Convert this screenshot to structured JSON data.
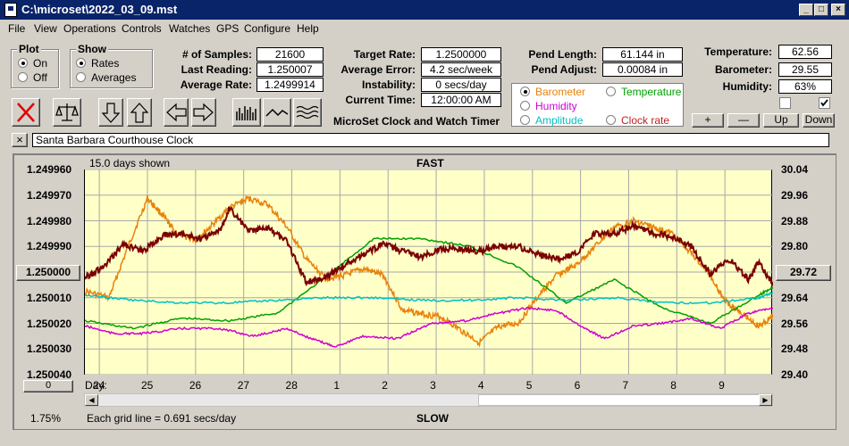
{
  "window": {
    "title": "C:\\microset\\2022_03_09.mst"
  },
  "menu": [
    "File",
    "View",
    "Operations",
    "Controls",
    "Watches",
    "GPS",
    "Configure",
    "Help"
  ],
  "plot_group": {
    "title": "Plot",
    "on": "On",
    "off": "Off",
    "selected": "on"
  },
  "show_group": {
    "title": "Show",
    "rates": "Rates",
    "averages": "Averages",
    "selected": "rates"
  },
  "stats": {
    "samples_label": "# of Samples:",
    "samples": "21600",
    "last_reading_label": "Last Reading:",
    "last_reading": "1.250007",
    "avg_rate_label": "Average Rate:",
    "avg_rate": "1.2499914",
    "target_rate_label": "Target Rate:",
    "target_rate": "1.2500000",
    "avg_error_label": "Average Error:",
    "avg_error": "4.2 sec/week",
    "instability_label": "Instability:",
    "instability": "0 secs/day",
    "current_time_label": "Current Time:",
    "current_time": "12:00:00 AM",
    "pend_length_label": "Pend Length:",
    "pend_length": "61.144 in",
    "pend_adjust_label": "Pend Adjust:",
    "pend_adjust": "0.00084 in",
    "temperature_label": "Temperature:",
    "temperature": "62.56",
    "barometer_label": "Barometer:",
    "barometer": "29.55",
    "humidity_label": "Humidity:",
    "humidity": "63%"
  },
  "app_title": "MicroSet Clock and Watch Timer",
  "channel_legend": {
    "barometer": "Barometer",
    "temperature": "Temperature",
    "humidity": "Humidity",
    "amplitude": "Amplitude",
    "clock_rate": "Clock rate",
    "selected": "barometer",
    "colors": {
      "barometer": "#e8820a",
      "temperature": "#00a000",
      "humidity": "#d000d0",
      "amplitude": "#00c0c0",
      "clock_rate": "#c02020"
    }
  },
  "adjust_buttons": {
    "plus": "+",
    "minus": "—",
    "up": "Up",
    "down": "Down"
  },
  "checkboxes": {
    "left_checked": false,
    "right_checked": true
  },
  "clock_name": {
    "close_icon_label": "×",
    "value": "Santa Barbara Courthouse Clock"
  },
  "chart_header": {
    "days_shown": "15.0 days shown",
    "fast": "FAST",
    "slow": "SLOW"
  },
  "chart_footer": {
    "grid_note": "Each grid line = 0.691 secs/day",
    "percent": "1.75%",
    "day_label": "Day:"
  },
  "left_axis": {
    "center_button": "1.250000",
    "bottom_button": "0"
  },
  "right_axis": {
    "center_button": "29.72"
  },
  "chart_data": {
    "type": "line",
    "x_label": "Day:",
    "x_ticks": [
      "24",
      "25",
      "26",
      "27",
      "28",
      "1",
      "2",
      "3",
      "4",
      "5",
      "6",
      "7",
      "8",
      "9"
    ],
    "x_range": [
      0,
      14.3
    ],
    "y_left": {
      "ticks": [
        "1.249960",
        "1.249970",
        "1.249980",
        "1.249990",
        "1.250000",
        "1.250010",
        "1.250020",
        "1.250030",
        "1.250040"
      ],
      "range": [
        1.24996,
        1.25004
      ],
      "inverted": true
    },
    "y_right": {
      "ticks": [
        "30.04",
        "29.96",
        "29.88",
        "29.80",
        "29.72",
        "29.64",
        "29.56",
        "29.48",
        "29.40"
      ],
      "range": [
        29.4,
        30.04
      ]
    },
    "grid": true,
    "series": [
      {
        "name": "Barometer",
        "color": "#e8820a",
        "axis": "right",
        "x": [
          0,
          0.5,
          0.9,
          1.3,
          1.6,
          1.9,
          2.3,
          2.6,
          3.0,
          3.4,
          3.8,
          4.2,
          4.6,
          5.0,
          5.4,
          5.8,
          6.2,
          6.6,
          7.0,
          7.4,
          7.8,
          8.2,
          8.6,
          9.0,
          9.4,
          9.8,
          10.2,
          10.6,
          11.0,
          11.4,
          11.8,
          12.2,
          12.6,
          13.0,
          13.3,
          13.6,
          14.0,
          14.3
        ],
        "y": [
          29.66,
          29.64,
          29.8,
          29.95,
          29.9,
          29.84,
          29.82,
          29.86,
          29.92,
          29.95,
          29.93,
          29.86,
          29.76,
          29.7,
          29.71,
          29.73,
          29.71,
          29.6,
          29.59,
          29.58,
          29.54,
          29.5,
          29.55,
          29.56,
          29.64,
          29.71,
          29.74,
          29.8,
          29.86,
          29.88,
          29.86,
          29.84,
          29.78,
          29.71,
          29.63,
          29.6,
          29.55,
          29.58
        ]
      },
      {
        "name": "Temperature",
        "color": "#00a000",
        "axis": "left",
        "x": [
          0,
          1,
          2,
          3,
          4,
          5,
          6,
          7,
          8,
          9,
          10,
          11,
          12,
          13,
          14,
          14.3
        ],
        "y": [
          1.250019,
          1.250022,
          1.250018,
          1.250019,
          1.250016,
          1.250002,
          1.249987,
          1.249987,
          1.24999,
          1.249998,
          1.250012,
          1.250003,
          1.250014,
          1.25002,
          1.250009,
          1.250006
        ]
      },
      {
        "name": "Amplitude",
        "color": "#00c0c0",
        "axis": "left",
        "x": [
          0,
          1,
          2,
          3,
          4,
          5,
          6,
          7,
          8,
          9,
          10,
          11,
          12,
          13,
          14,
          14.3
        ],
        "y": [
          1.250009,
          1.250011,
          1.250012,
          1.250012,
          1.250011,
          1.25001,
          1.25001,
          1.250011,
          1.250011,
          1.25001,
          1.250011,
          1.25001,
          1.250012,
          1.250012,
          1.25001,
          1.250008
        ]
      },
      {
        "name": "Humidity",
        "color": "#d000d0",
        "axis": "left",
        "x": [
          0,
          0.6,
          1.2,
          2.0,
          2.8,
          3.5,
          4.2,
          4.7,
          5.2,
          5.8,
          6.5,
          7.2,
          7.9,
          8.6,
          9.2,
          9.8,
          10.4,
          10.8,
          11.4,
          12.0,
          12.6,
          13.2,
          13.8,
          14.3
        ],
        "y": [
          1.250021,
          1.250024,
          1.250024,
          1.250022,
          1.250022,
          1.250025,
          1.250022,
          1.250026,
          1.250029,
          1.250025,
          1.250026,
          1.25002,
          1.250019,
          1.250016,
          1.250014,
          1.250015,
          1.250022,
          1.250026,
          1.250021,
          1.25002,
          1.250018,
          1.250022,
          1.250016,
          1.250014
        ]
      },
      {
        "name": "Clock rate",
        "color": "#7a0000",
        "axis": "left",
        "x": [
          0,
          0.4,
          0.8,
          1.2,
          1.6,
          2.0,
          2.4,
          2.8,
          3.0,
          3.4,
          3.8,
          4.2,
          4.6,
          5.0,
          5.4,
          5.8,
          6.2,
          6.6,
          7.0,
          7.4,
          7.8,
          8.2,
          8.6,
          9.0,
          9.4,
          9.8,
          10.2,
          10.6,
          11.0,
          11.4,
          11.8,
          12.2,
          12.6,
          13.0,
          13.4,
          13.8,
          14.0,
          14.3
        ],
        "y": [
          1.250002,
          1.249998,
          1.249989,
          1.249992,
          1.249986,
          1.249985,
          1.249987,
          1.249984,
          1.249975,
          1.249984,
          1.249983,
          1.249988,
          1.250004,
          1.250002,
          1.249997,
          1.249993,
          1.249989,
          1.249992,
          1.249994,
          1.249991,
          1.249991,
          1.249992,
          1.24999,
          1.24999,
          1.249993,
          1.249995,
          1.249993,
          1.249985,
          1.249985,
          1.249982,
          1.249985,
          1.249986,
          1.24999,
          1.250001,
          1.249995,
          1.250003,
          1.249996,
          1.250005
        ]
      }
    ]
  }
}
